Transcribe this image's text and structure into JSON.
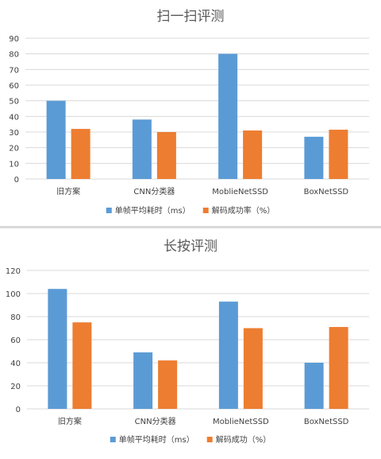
{
  "chart_data": [
    {
      "type": "bar",
      "title": "扫一扫评测",
      "categories": [
        "旧方案",
        "CNN分类器",
        "MoblieNetSSD",
        "BoxNetSSD"
      ],
      "series": [
        {
          "name": "单帧平均耗时（ms）",
          "values": [
            50,
            38,
            80,
            27
          ]
        },
        {
          "name": "解码成功率（%）",
          "values": [
            32,
            30,
            31,
            31.5
          ]
        }
      ],
      "ylim": [
        0,
        90
      ],
      "yticks": [
        0,
        10,
        20,
        30,
        40,
        50,
        60,
        70,
        80,
        90
      ],
      "grid": true,
      "legend": "bottom"
    },
    {
      "type": "bar",
      "title": "长按评测",
      "categories": [
        "旧方案",
        "CNN分类器",
        "MoblieNetSSD",
        "BoxNetSSD"
      ],
      "series": [
        {
          "name": "单帧平均耗时（ms）",
          "values": [
            104,
            49,
            93,
            40
          ]
        },
        {
          "name": "解码成功（%）",
          "values": [
            75,
            42,
            70,
            71
          ]
        }
      ],
      "ylim": [
        0,
        120
      ],
      "yticks": [
        0,
        20,
        40,
        60,
        80,
        100,
        120
      ],
      "grid": true,
      "legend": "bottom"
    }
  ],
  "colors": {
    "series1": "#5b9bd5",
    "series2": "#ed7d31",
    "grid": "#d9d9d9",
    "text": "#404040",
    "title": "#595959"
  }
}
